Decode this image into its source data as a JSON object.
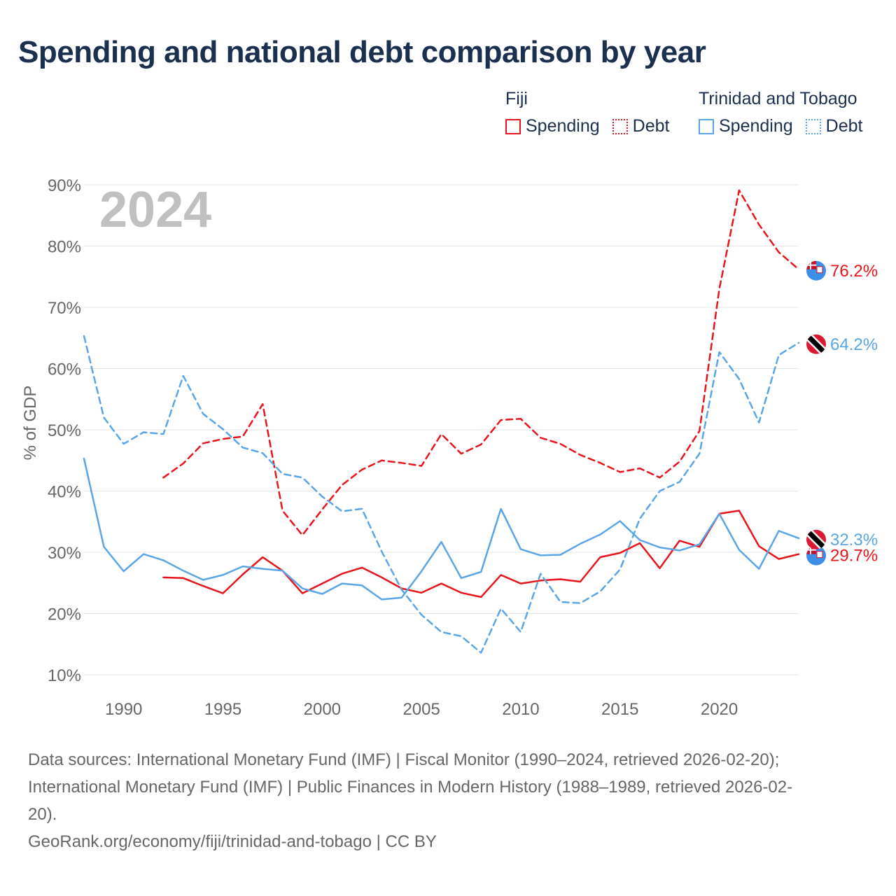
{
  "title": "Spending and national debt comparison by year",
  "legend": {
    "groups": [
      {
        "country": "Fiji",
        "spending_label": "Spending",
        "debt_label": "Debt"
      },
      {
        "country": "Trinidad and Tobago",
        "spending_label": "Spending",
        "debt_label": "Debt"
      }
    ]
  },
  "colors": {
    "fiji": "#e8141c",
    "tt": "#5aa5e6",
    "grid": "#e6e6e6",
    "axis_text": "#666666",
    "year_watermark": "#c0c0c0"
  },
  "chart_data": {
    "type": "line",
    "title": "Spending and national debt comparison by year",
    "ylabel": "% of GDP",
    "xlabel": "",
    "year_watermark": "2024",
    "xlim": [
      1988,
      2024
    ],
    "ylim": [
      10,
      90
    ],
    "x_ticks": [
      1990,
      1995,
      2000,
      2005,
      2010,
      2015,
      2020
    ],
    "y_ticks": [
      10,
      20,
      30,
      40,
      50,
      60,
      70,
      80,
      90
    ],
    "y_tick_labels": [
      "10%",
      "20%",
      "30%",
      "40%",
      "50%",
      "60%",
      "70%",
      "80%",
      "90%"
    ],
    "series": [
      {
        "name": "Fiji Spending",
        "country": "Fiji",
        "measure": "Spending",
        "style": "solid",
        "color": "#e8141c",
        "end_label": "29.7%",
        "end_flag": "fiji",
        "x": [
          1992,
          1993,
          1994,
          1995,
          1996,
          1997,
          1998,
          1999,
          2000,
          2001,
          2002,
          2003,
          2004,
          2005,
          2006,
          2007,
          2008,
          2009,
          2010,
          2011,
          2012,
          2013,
          2014,
          2015,
          2016,
          2017,
          2018,
          2019,
          2020,
          2021,
          2022,
          2023,
          2024
        ],
        "values": [
          25.9,
          25.8,
          24.5,
          23.3,
          26.4,
          29.2,
          27.0,
          23.3,
          24.9,
          26.5,
          27.5,
          25.9,
          24.1,
          23.4,
          24.9,
          23.4,
          22.7,
          26.3,
          24.9,
          25.4,
          25.6,
          25.2,
          29.2,
          29.9,
          31.5,
          27.4,
          31.9,
          30.9,
          36.3,
          36.8,
          31.0,
          28.9,
          29.7
        ]
      },
      {
        "name": "Fiji Debt",
        "country": "Fiji",
        "measure": "Debt",
        "style": "dashed",
        "color": "#e8141c",
        "end_label": "76.2%",
        "end_flag": "fiji",
        "x": [
          1992,
          1993,
          1994,
          1995,
          1996,
          1997,
          1998,
          1999,
          2000,
          2001,
          2002,
          2003,
          2004,
          2005,
          2006,
          2007,
          2008,
          2009,
          2010,
          2011,
          2012,
          2013,
          2014,
          2015,
          2016,
          2017,
          2018,
          2019,
          2020,
          2021,
          2022,
          2023,
          2024
        ],
        "values": [
          42.2,
          44.5,
          47.8,
          48.5,
          48.9,
          54.2,
          36.8,
          32.8,
          37.0,
          41.0,
          43.5,
          45.0,
          44.6,
          44.1,
          49.3,
          46.1,
          47.6,
          51.6,
          51.8,
          48.7,
          47.7,
          45.9,
          44.6,
          43.1,
          43.7,
          42.2,
          44.8,
          49.8,
          73.0,
          89.1,
          83.5,
          79.0,
          76.2
        ]
      },
      {
        "name": "Trinidad and Tobago Spending",
        "country": "Trinidad and Tobago",
        "measure": "Spending",
        "style": "solid",
        "color": "#5aa5e6",
        "end_label": "32.3%",
        "end_flag": "tt",
        "x": [
          1988,
          1989,
          1990,
          1991,
          1992,
          1993,
          1994,
          1995,
          1996,
          1997,
          1998,
          1999,
          2000,
          2001,
          2002,
          2003,
          2004,
          2005,
          2006,
          2007,
          2008,
          2009,
          2010,
          2011,
          2012,
          2013,
          2014,
          2015,
          2016,
          2017,
          2018,
          2019,
          2020,
          2021,
          2022,
          2023,
          2024
        ],
        "values": [
          45.3,
          30.9,
          26.9,
          29.7,
          28.7,
          27.0,
          25.5,
          26.3,
          27.7,
          27.3,
          27.0,
          24.1,
          23.2,
          24.9,
          24.6,
          22.3,
          22.6,
          26.9,
          31.7,
          25.8,
          26.8,
          37.1,
          30.5,
          29.5,
          29.6,
          31.4,
          32.9,
          35.1,
          32.0,
          30.8,
          30.3,
          31.3,
          36.3,
          30.4,
          27.3,
          33.5,
          32.3
        ]
      },
      {
        "name": "Trinidad and Tobago Debt",
        "country": "Trinidad and Tobago",
        "measure": "Debt",
        "style": "dashed",
        "color": "#5aa5e6",
        "end_label": "64.2%",
        "end_flag": "tt",
        "x": [
          1988,
          1989,
          1990,
          1991,
          1992,
          1993,
          1994,
          1995,
          1996,
          1997,
          1998,
          1999,
          2000,
          2001,
          2002,
          2003,
          2004,
          2005,
          2006,
          2007,
          2008,
          2009,
          2010,
          2011,
          2012,
          2013,
          2014,
          2015,
          2016,
          2017,
          2018,
          2019,
          2020,
          2021,
          2022,
          2023,
          2024
        ],
        "values": [
          65.3,
          52.0,
          47.7,
          49.6,
          49.3,
          58.8,
          52.6,
          50.1,
          47.1,
          46.2,
          42.8,
          42.2,
          39.1,
          36.7,
          37.1,
          30.1,
          23.9,
          19.8,
          17.0,
          16.3,
          13.6,
          20.8,
          17.0,
          26.5,
          21.9,
          21.7,
          23.6,
          27.2,
          35.5,
          40.0,
          41.5,
          46.1,
          62.7,
          58.3,
          51.2,
          62.2,
          64.2
        ]
      }
    ]
  },
  "footer": {
    "line1": "Data sources: International Monetary Fund (IMF) | Fiscal Monitor (1990–2024, retrieved 2026-02-20);",
    "line2": "International Monetary Fund (IMF) | Public Finances in Modern History (1988–1989, retrieved 2026-02-",
    "line3": "20).",
    "line4": "GeoRank.org/economy/fiji/trinidad-and-tobago | CC BY"
  }
}
